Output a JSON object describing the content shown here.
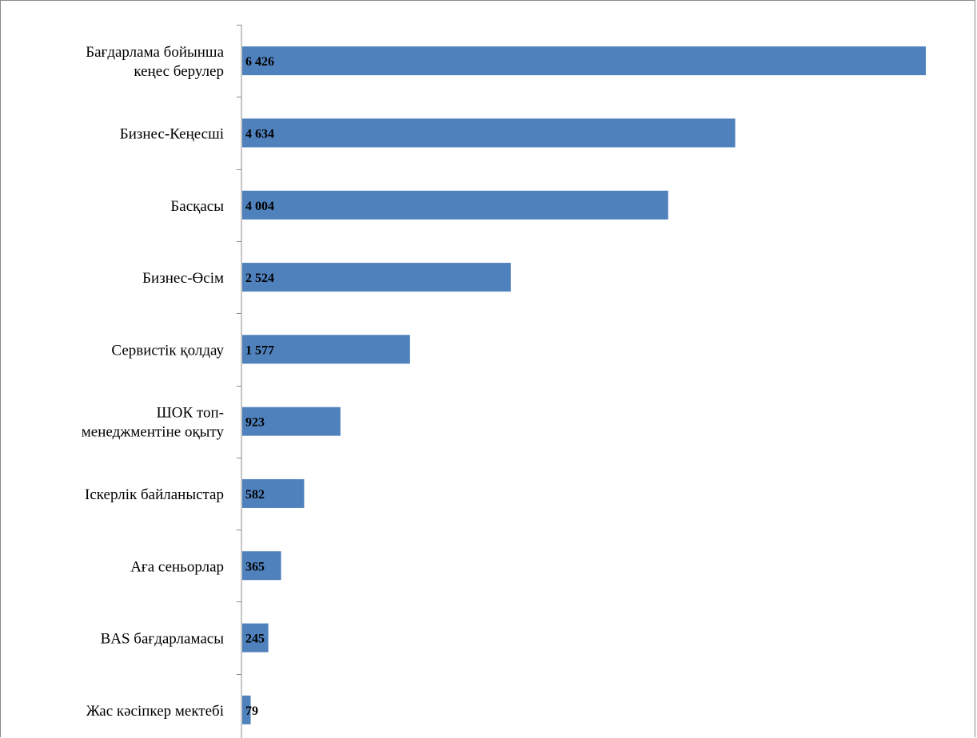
{
  "chart_data": {
    "type": "bar",
    "orientation": "horizontal",
    "categories": [
      "Бағдарлама бойынша кеңес берулер",
      "Бизнес-Кеңесші",
      "Басқасы",
      "Бизнес-Өсім",
      "Сервистік қолдау",
      "ШОК топ-менеджментіне оқыту",
      "Іскерлік байланыстар",
      "Аға сеньорлар",
      "BAS бағдарламасы",
      "Жас кәсіпкер мектебі"
    ],
    "category_lines": [
      [
        "Бағдарлама бойынша",
        "кеңес берулер"
      ],
      [
        "Бизнес-Кеңесші"
      ],
      [
        "Басқасы"
      ],
      [
        "Бизнес-Өсім"
      ],
      [
        "Сервистік қолдау"
      ],
      [
        "ШОК топ-",
        "менеджментіне оқыту"
      ],
      [
        "Іскерлік байланыстар"
      ],
      [
        "Аға сеньорлар"
      ],
      [
        "BAS бағдарламасы"
      ],
      [
        "Жас кәсіпкер мектебі"
      ]
    ],
    "values": [
      6426,
      4634,
      4004,
      2524,
      1577,
      923,
      582,
      365,
      245,
      79
    ],
    "value_labels": [
      "6 426",
      "4 634",
      "4 004",
      "2 524",
      "1 577",
      "923",
      "582",
      "365",
      "245",
      "79"
    ],
    "xlim": [
      0,
      6426
    ],
    "bar_color": "#4f81bd",
    "grid": false,
    "legend": "none",
    "data_labels": "inside-base"
  }
}
